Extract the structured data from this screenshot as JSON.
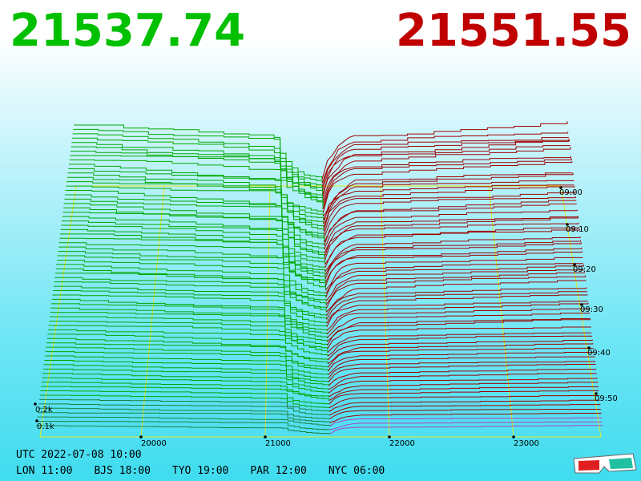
{
  "header": {
    "bid": "21537.74",
    "ask": "21551.55"
  },
  "price_axis": [
    "20000",
    "21000",
    "22000",
    "23000"
  ],
  "time_axis": [
    "09:00",
    "09:10",
    "09:20",
    "09:30",
    "09:40",
    "09:50"
  ],
  "volume_axis": [
    "0.2k",
    "0.1k"
  ],
  "footer": {
    "utc": "UTC 2022-07-08 10:00",
    "zones": [
      "LON 11:00",
      "BJS 18:00",
      "TYO 19:00",
      "PAR 12:00",
      "NYC 06:00"
    ]
  }
}
